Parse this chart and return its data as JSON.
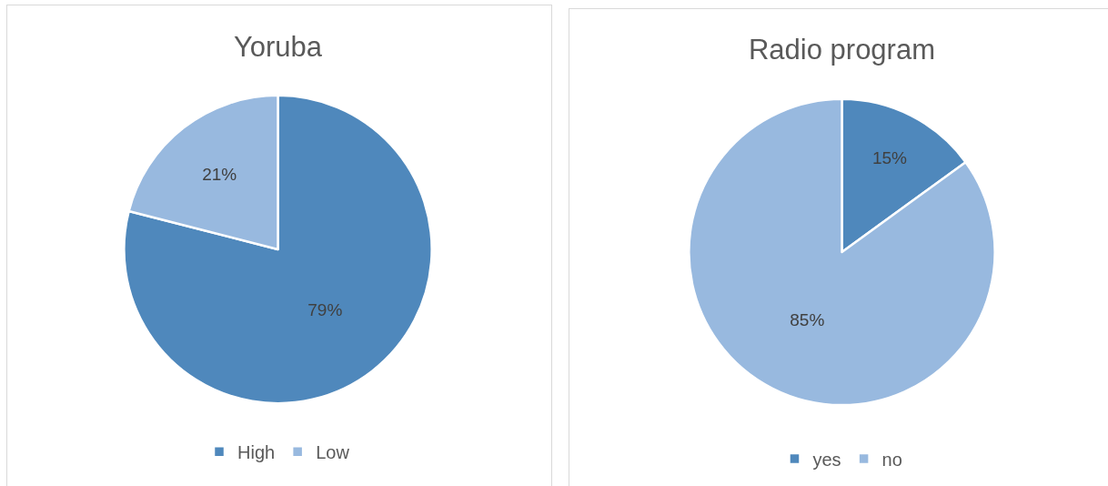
{
  "chart_data": [
    {
      "type": "pie",
      "title": "Yoruba",
      "categories": [
        "High",
        "Low"
      ],
      "values": [
        79,
        21
      ],
      "colors": [
        "#4f88bc",
        "#98b9df"
      ],
      "value_labels": [
        "79%",
        "21%"
      ],
      "legend": "bottom"
    },
    {
      "type": "pie",
      "title": "Radio program",
      "categories": [
        "yes",
        "no"
      ],
      "values": [
        15,
        85
      ],
      "colors": [
        "#4f88bc",
        "#98b9df"
      ],
      "value_labels": [
        "15%",
        "85%"
      ],
      "legend": "bottom"
    }
  ]
}
